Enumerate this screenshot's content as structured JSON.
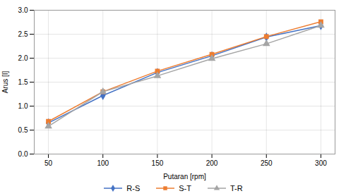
{
  "chart_data": {
    "type": "line",
    "x": [
      50,
      100,
      150,
      200,
      250,
      300
    ],
    "series": [
      {
        "name": "R-S",
        "color": "#4472C4",
        "marker": "diamond",
        "values": [
          0.65,
          1.22,
          1.7,
          2.05,
          2.44,
          2.68
        ]
      },
      {
        "name": "S-T",
        "color": "#ED7D31",
        "marker": "square",
        "values": [
          0.68,
          1.3,
          1.73,
          2.08,
          2.45,
          2.76
        ]
      },
      {
        "name": "T-R",
        "color": "#A5A5A5",
        "marker": "triangle",
        "values": [
          0.58,
          1.3,
          1.63,
          1.99,
          2.3,
          2.68
        ]
      }
    ],
    "xlabel": "Putaran [rpm]",
    "ylabel": "Arus [I]",
    "xlim": [
      37,
      313
    ],
    "ylim": [
      0,
      3
    ],
    "xticks": [
      50,
      100,
      150,
      200,
      250,
      300
    ],
    "yticks": [
      {
        "value": 0,
        "label": "0.0"
      },
      0.5,
      {
        "value": 1,
        "label": "1.0"
      },
      1.5,
      {
        "value": 2,
        "label": "2.0"
      },
      2.5,
      {
        "value": 3,
        "label": "3.0"
      }
    ],
    "grid": true,
    "legend": "bottom"
  }
}
